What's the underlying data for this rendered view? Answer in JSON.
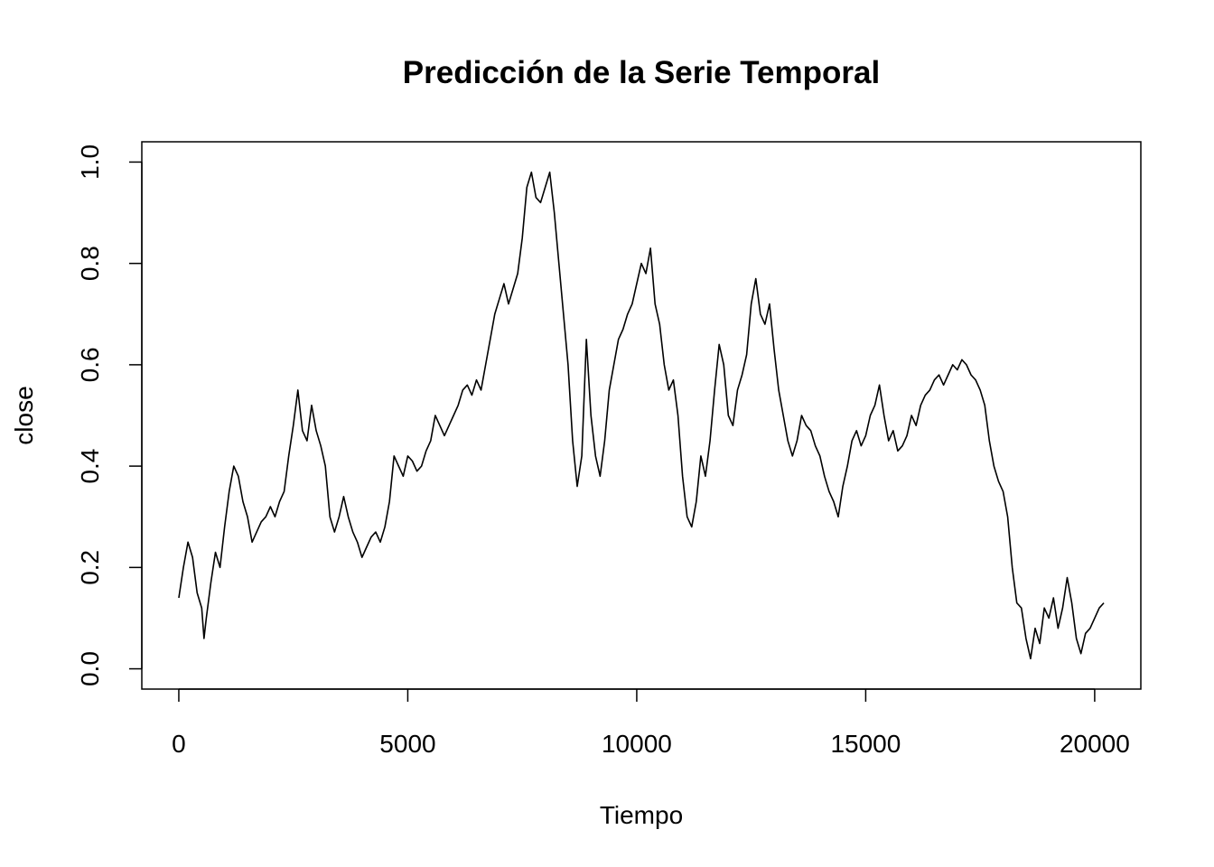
{
  "chart_data": {
    "type": "line",
    "title": "Predicción de la Serie Temporal",
    "x_label": "Tiempo",
    "y_label": "close",
    "xlim": [
      -808,
      21008
    ],
    "ylim": [
      -0.04,
      1.04
    ],
    "xticks": [
      0,
      5000,
      10000,
      15000,
      20000
    ],
    "yticks": [
      {
        "value": 0,
        "label": "0.0"
      },
      0.2,
      0.4,
      0.6,
      0.8,
      {
        "value": 1,
        "label": "1.0"
      }
    ],
    "x": [
      0,
      100,
      200,
      300,
      400,
      500,
      550,
      600,
      700,
      800,
      900,
      1000,
      1100,
      1200,
      1300,
      1400,
      1500,
      1600,
      1700,
      1800,
      1900,
      2000,
      2100,
      2200,
      2300,
      2400,
      2500,
      2600,
      2700,
      2800,
      2900,
      3000,
      3100,
      3200,
      3300,
      3400,
      3500,
      3600,
      3700,
      3800,
      3900,
      4000,
      4100,
      4200,
      4300,
      4400,
      4500,
      4600,
      4700,
      4800,
      4900,
      5000,
      5100,
      5200,
      5300,
      5400,
      5500,
      5600,
      5700,
      5800,
      5900,
      6000,
      6100,
      6200,
      6300,
      6400,
      6500,
      6600,
      6700,
      6800,
      6900,
      7000,
      7100,
      7200,
      7300,
      7400,
      7500,
      7600,
      7700,
      7800,
      7900,
      8000,
      8100,
      8200,
      8300,
      8400,
      8500,
      8600,
      8700,
      8800,
      8900,
      9000,
      9100,
      9200,
      9300,
      9400,
      9500,
      9600,
      9700,
      9800,
      9900,
      10000,
      10100,
      10200,
      10300,
      10400,
      10500,
      10600,
      10700,
      10800,
      10900,
      11000,
      11100,
      11200,
      11300,
      11400,
      11500,
      11600,
      11700,
      11800,
      11900,
      12000,
      12100,
      12200,
      12300,
      12400,
      12500,
      12600,
      12700,
      12800,
      12900,
      13000,
      13100,
      13200,
      13300,
      13400,
      13500,
      13600,
      13700,
      13800,
      13900,
      14000,
      14100,
      14200,
      14300,
      14400,
      14500,
      14600,
      14700,
      14800,
      14900,
      15000,
      15100,
      15200,
      15300,
      15400,
      15500,
      15600,
      15700,
      15800,
      15900,
      16000,
      16100,
      16200,
      16300,
      16400,
      16500,
      16600,
      16700,
      16800,
      16900,
      17000,
      17100,
      17200,
      17300,
      17400,
      17500,
      17600,
      17700,
      17800,
      17900,
      18000,
      18100,
      18200,
      18300,
      18400,
      18500,
      18600,
      18700,
      18800,
      18900,
      19000,
      19100,
      19200,
      19300,
      19400,
      19500,
      19600,
      19700,
      19800,
      19900,
      20000,
      20100,
      20200
    ],
    "series": [
      {
        "color": "#000000",
        "values": [
          0.14,
          0.2,
          0.25,
          0.22,
          0.15,
          0.12,
          0.06,
          0.1,
          0.17,
          0.23,
          0.2,
          0.28,
          0.35,
          0.4,
          0.38,
          0.33,
          0.3,
          0.25,
          0.27,
          0.29,
          0.3,
          0.32,
          0.3,
          0.33,
          0.35,
          0.42,
          0.48,
          0.55,
          0.47,
          0.45,
          0.52,
          0.47,
          0.44,
          0.4,
          0.3,
          0.27,
          0.3,
          0.34,
          0.3,
          0.27,
          0.25,
          0.22,
          0.24,
          0.26,
          0.27,
          0.25,
          0.28,
          0.33,
          0.42,
          0.4,
          0.38,
          0.42,
          0.41,
          0.39,
          0.4,
          0.43,
          0.45,
          0.5,
          0.48,
          0.46,
          0.48,
          0.5,
          0.52,
          0.55,
          0.56,
          0.54,
          0.57,
          0.55,
          0.6,
          0.65,
          0.7,
          0.73,
          0.76,
          0.72,
          0.75,
          0.78,
          0.85,
          0.95,
          0.98,
          0.93,
          0.92,
          0.95,
          0.98,
          0.9,
          0.8,
          0.7,
          0.6,
          0.45,
          0.36,
          0.42,
          0.65,
          0.5,
          0.42,
          0.38,
          0.45,
          0.55,
          0.6,
          0.65,
          0.67,
          0.7,
          0.72,
          0.76,
          0.8,
          0.78,
          0.83,
          0.72,
          0.68,
          0.6,
          0.55,
          0.57,
          0.5,
          0.38,
          0.3,
          0.28,
          0.33,
          0.42,
          0.38,
          0.45,
          0.55,
          0.64,
          0.6,
          0.5,
          0.48,
          0.55,
          0.58,
          0.62,
          0.72,
          0.77,
          0.7,
          0.68,
          0.72,
          0.63,
          0.55,
          0.5,
          0.45,
          0.42,
          0.45,
          0.5,
          0.48,
          0.47,
          0.44,
          0.42,
          0.38,
          0.35,
          0.33,
          0.3,
          0.36,
          0.4,
          0.45,
          0.47,
          0.44,
          0.46,
          0.5,
          0.52,
          0.56,
          0.5,
          0.45,
          0.47,
          0.43,
          0.44,
          0.46,
          0.5,
          0.48,
          0.52,
          0.54,
          0.55,
          0.57,
          0.58,
          0.56,
          0.58,
          0.6,
          0.59,
          0.61,
          0.6,
          0.58,
          0.57,
          0.55,
          0.52,
          0.45,
          0.4,
          0.37,
          0.35,
          0.3,
          0.2,
          0.13,
          0.12,
          0.06,
          0.02,
          0.08,
          0.05,
          0.12,
          0.1,
          0.14,
          0.08,
          0.12,
          0.18,
          0.13,
          0.06,
          0.03,
          0.07,
          0.08,
          0.1,
          0.12,
          0.13
        ]
      }
    ]
  }
}
